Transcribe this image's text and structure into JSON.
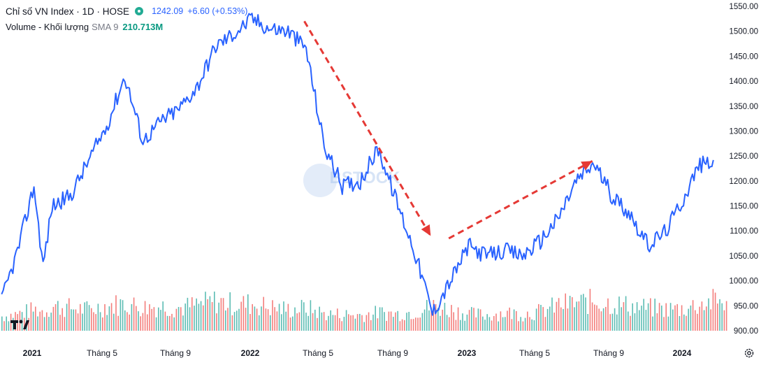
{
  "legend": {
    "symbol_title": "Chỉ số VN Index · 1D · HOSE",
    "price": "1242.09",
    "change": "+6.60 (+0.53%)",
    "volume_label": "Volume - Khối lượng",
    "volume_sma": "SMA 9",
    "volume_value": "210.713M"
  },
  "watermark": "BSTOCK",
  "colors": {
    "line": "#2962ff",
    "volume_up": "#26a69a",
    "volume_down": "#ef5350",
    "arrow": "#e53935",
    "status_dot": "#22ab94",
    "axis_text": "#131722"
  },
  "icons": {
    "logo": "tradingview-logo-icon",
    "settings": "gear-icon",
    "status": "market-open-dot-icon"
  },
  "chart_data": {
    "type": "line",
    "title": "",
    "xlabel": "",
    "ylabel": "",
    "x_ticks": [
      "2021",
      "Tháng 5",
      "Tháng 9",
      "2022",
      "Tháng 5",
      "Tháng 9",
      "2023",
      "Tháng 5",
      "Tháng 9",
      "2024"
    ],
    "y_ticks": [
      900,
      950,
      1000,
      1050,
      1100,
      1150,
      1200,
      1250,
      1300,
      1350,
      1400,
      1450,
      1500,
      1550
    ],
    "ylim": [
      885,
      1560
    ],
    "xlim": [
      "2020-11",
      "2024-04"
    ],
    "grid": false,
    "series": [
      {
        "name": "Chỉ số VN Index",
        "x": [
          "2020-11",
          "2020-12",
          "2021-01",
          "2021-01",
          "2021-02",
          "2021-03",
          "2021-04",
          "2021-05",
          "2021-06",
          "2021-07",
          "2021-08",
          "2021-09",
          "2021-10",
          "2021-11",
          "2021-12",
          "2022-01",
          "2022-02",
          "2022-03",
          "2022-04",
          "2022-05",
          "2022-06",
          "2022-07",
          "2022-08",
          "2022-09",
          "2022-10",
          "2022-11",
          "2022-12",
          "2023-01",
          "2023-02",
          "2023-03",
          "2023-04",
          "2023-05",
          "2023-06",
          "2023-07",
          "2023-08",
          "2023-09",
          "2023-10",
          "2023-11",
          "2023-12",
          "2024-01",
          "2024-02",
          "2024-03"
        ],
        "values": [
          960,
          1060,
          1190,
          1030,
          1150,
          1170,
          1240,
          1310,
          1410,
          1280,
          1320,
          1345,
          1390,
          1470,
          1495,
          1525,
          1505,
          1500,
          1465,
          1270,
          1190,
          1200,
          1265,
          1160,
          1060,
          935,
          1000,
          1070,
          1050,
          1060,
          1050,
          1080,
          1125,
          1200,
          1235,
          1170,
          1135,
          1070,
          1100,
          1165,
          1230,
          1242
        ]
      },
      {
        "name": "Volume - Khối lượng",
        "values_millions": [
          480,
          560,
          700,
          650,
          820,
          760,
          700,
          840,
          900,
          780,
          820,
          760,
          860,
          980,
          880,
          900,
          780,
          700,
          760,
          560,
          540,
          520,
          600,
          560,
          640,
          820,
          700,
          560,
          520,
          600,
          560,
          640,
          860,
          920,
          980,
          900,
          820,
          760,
          720,
          740,
          880,
          980
        ]
      }
    ],
    "annotations": [
      {
        "type": "arrow",
        "style": "dashed",
        "from": [
          "2022-04",
          1520
        ],
        "to": [
          "2022-11",
          1090
        ]
      },
      {
        "type": "arrow",
        "style": "dashed",
        "from": [
          "2022-12",
          1085
        ],
        "to": [
          "2023-08",
          1240
        ]
      }
    ]
  }
}
